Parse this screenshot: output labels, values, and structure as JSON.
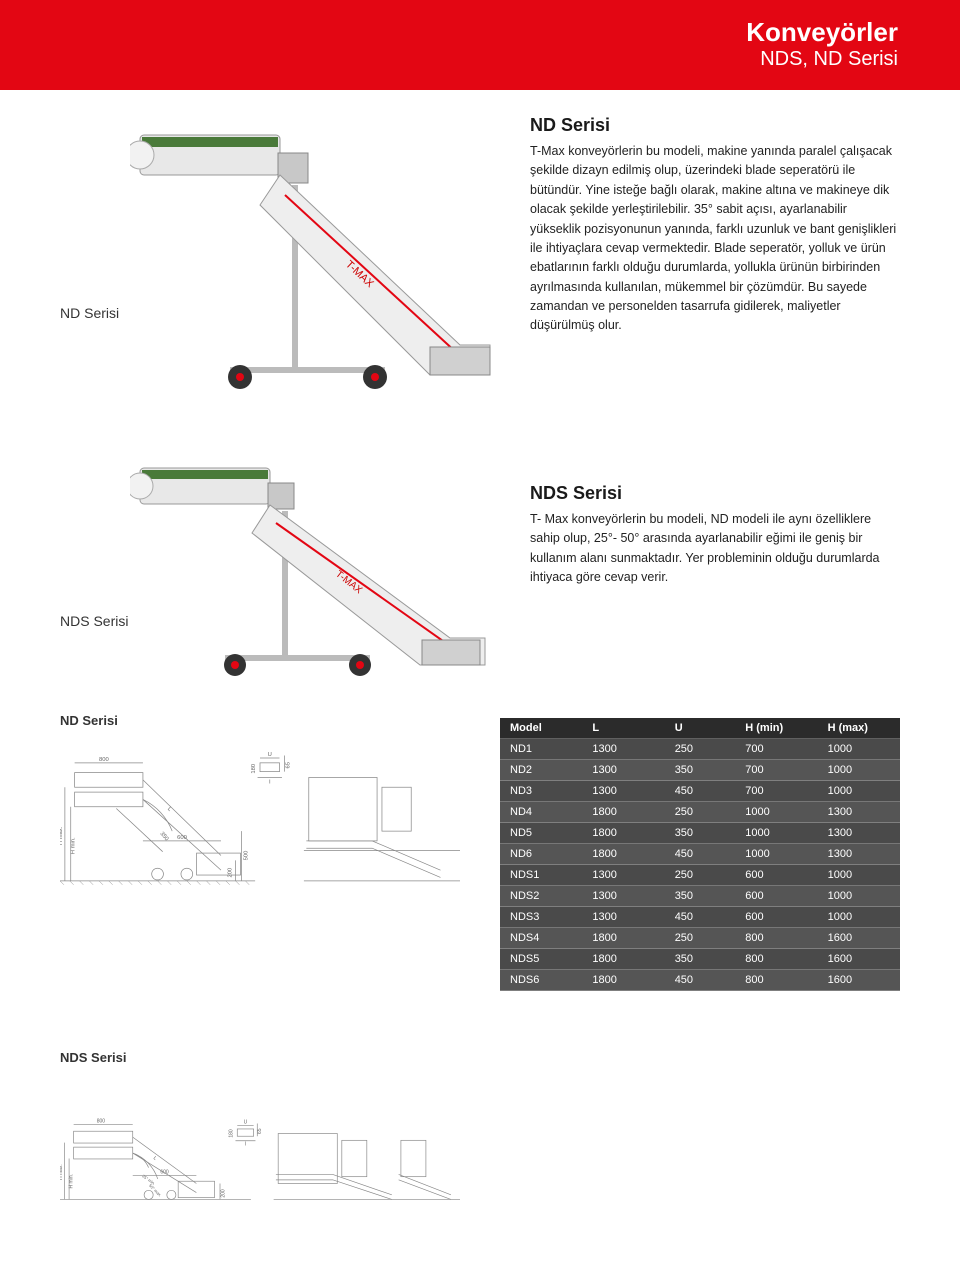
{
  "header": {
    "title": "Konveyörler",
    "subtitle": "NDS, ND Serisi"
  },
  "nd": {
    "heading": "ND Serisi",
    "label": "ND Serisi",
    "body": "T-Max konveyörlerin bu modeli, makine yanında paralel çalışacak şekilde dizayn edilmiş olup, üzerindeki blade seperatörü ile bütündür. Yine isteğe bağlı olarak, makine altına ve makineye dik olacak şekilde yerleştirilebilir. 35° sabit açısı, ayarlanabilir yükseklik pozisyonunun yanında, farklı uzunluk ve bant genişlikleri ile ihtiyaçlara cevap vermektedir. Blade seperatör, yolluk ve ürün ebatlarının farklı olduğu durumlarda, yollukla ürünün birbirinden ayrılmasında kullanılan, mükemmel bir çözümdür. Bu sayede zamandan ve personelden tasarrufa gidilerek, maliyetler düşürülmüş olur."
  },
  "nds": {
    "heading": "NDS Serisi",
    "label": "NDS Serisi",
    "body": "T- Max konveyörlerin bu modeli, ND modeli ile aynı özelliklere sahip olup, 25°- 50° arasında ayarlanabilir eğimi ile geniş bir kullanım alanı sunmaktadır. Yer probleminin olduğu durumlarda ihtiyaca göre cevap verir."
  },
  "dim_labels": {
    "nd": "ND Serisi",
    "nds": "NDS Serisi"
  },
  "table": {
    "headers": [
      "Model",
      "L",
      "U",
      "H (min)",
      "H (max)"
    ],
    "rows": [
      [
        "ND1",
        "1300",
        "250",
        "700",
        "1000"
      ],
      [
        "ND2",
        "1300",
        "350",
        "700",
        "1000"
      ],
      [
        "ND3",
        "1300",
        "450",
        "700",
        "1000"
      ],
      [
        "ND4",
        "1800",
        "250",
        "1000",
        "1300"
      ],
      [
        "ND5",
        "1800",
        "350",
        "1000",
        "1300"
      ],
      [
        "ND6",
        "1800",
        "450",
        "1000",
        "1300"
      ],
      [
        "NDS1",
        "1300",
        "250",
        "600",
        "1000"
      ],
      [
        "NDS2",
        "1300",
        "350",
        "600",
        "1000"
      ],
      [
        "NDS3",
        "1300",
        "450",
        "600",
        "1000"
      ],
      [
        "NDS4",
        "1800",
        "250",
        "800",
        "1600"
      ],
      [
        "NDS5",
        "1800",
        "350",
        "800",
        "1600"
      ],
      [
        "NDS6",
        "1800",
        "450",
        "800",
        "1600"
      ]
    ]
  },
  "drawing_dims": {
    "d800": "800",
    "d600": "600",
    "d350": "350",
    "d500": "500",
    "d200": "200",
    "d180": "180",
    "d65": "65",
    "L": "L",
    "U": "U",
    "I": "I",
    "hmin": "H min.",
    "hmax": "H max.",
    "a50max": "50° max.",
    "a25min": "25° min."
  },
  "colors": {
    "accent": "#e30613",
    "table_header": "#2b2b2b",
    "table_row": "#4a4a4a",
    "text": "#1a1a1a",
    "drawing": "#888888"
  }
}
